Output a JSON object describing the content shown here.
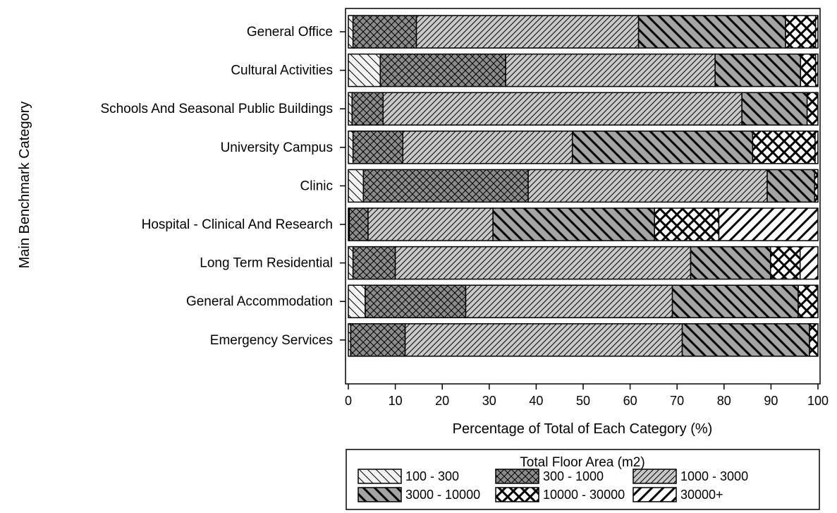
{
  "chart_data": {
    "type": "bar",
    "orientation": "horizontal",
    "stacked": true,
    "categories": [
      "General Office",
      "Cultural Activities",
      "Schools And Seasonal Public Buildings",
      "University Campus",
      "Clinic",
      "Hospital - Clinical And Research",
      "Long Term Residential",
      "General Accommodation",
      "Emergency Services"
    ],
    "series": [
      {
        "name": "100 - 300",
        "pattern": "sparse-backslash",
        "fill": "#f2f2f2",
        "values": [
          1.0,
          6.8,
          0.8,
          1.0,
          3.2,
          0.2,
          1.0,
          3.6,
          0.5
        ]
      },
      {
        "name": "300 - 1000",
        "pattern": "crosshatch",
        "fill": "#8c8c8c",
        "values": [
          13.5,
          26.7,
          6.6,
          10.6,
          35.1,
          4.0,
          9.0,
          21.4,
          11.6
        ]
      },
      {
        "name": "1000 - 3000",
        "pattern": "dense-slash",
        "fill": "#c8c8c8",
        "values": [
          47.3,
          44.6,
          76.4,
          36.1,
          50.9,
          26.6,
          62.9,
          44.0,
          59.0
        ]
      },
      {
        "name": "3000 - 10000",
        "pattern": "backslash",
        "fill": "#a3a3a3",
        "values": [
          31.3,
          18.2,
          13.9,
          38.4,
          10.1,
          34.4,
          17.0,
          26.8,
          27.1
        ]
      },
      {
        "name": "10000 - 30000",
        "pattern": "bold-crosshatch",
        "fill": "#ffffff",
        "values": [
          6.4,
          3.2,
          2.3,
          13.3,
          0.7,
          13.7,
          6.3,
          4.2,
          1.8
        ]
      },
      {
        "name": "30000+",
        "pattern": "slash",
        "fill": "#ffffff",
        "values": [
          0.5,
          0.5,
          0,
          0.6,
          0,
          21.1,
          3.8,
          0,
          0
        ]
      }
    ],
    "xlabel": "Percentage of Total of Each Category (%)",
    "ylabel": "Main Benchmark Category",
    "xlim": [
      0,
      100
    ],
    "xticks": [
      0,
      10,
      20,
      30,
      40,
      50,
      60,
      70,
      80,
      90,
      100
    ],
    "grid": false,
    "legend": {
      "title": "Total Floor Area (m2)",
      "placement": "bottom-right",
      "columns": 3
    }
  }
}
